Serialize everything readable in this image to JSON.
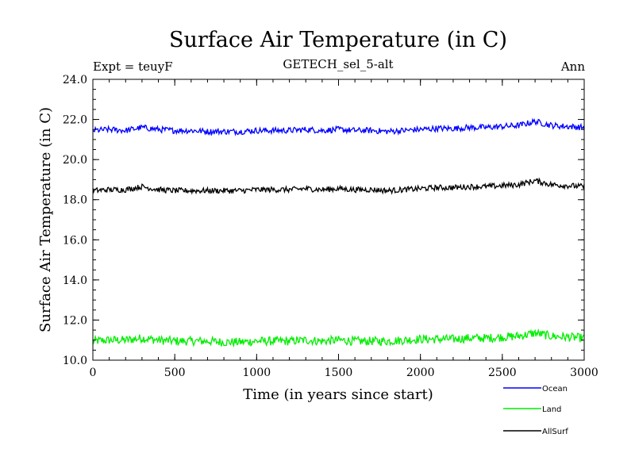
{
  "chart_data": {
    "type": "line",
    "title": "Surface Air Temperature (in C)",
    "subtitle": "GETECH_sel_5-alt",
    "left_label": "Expt = teuyF",
    "right_label": "Ann",
    "xlabel": "Time (in years since start)",
    "ylabel": "Surface Air Temperature (in C)",
    "xlim": [
      0,
      3000
    ],
    "ylim": [
      10.0,
      24.0
    ],
    "x_ticks": [
      "0",
      "500",
      "1000",
      "1500",
      "2000",
      "2500",
      "3000"
    ],
    "y_ticks": [
      "10.0",
      "12.0",
      "14.0",
      "16.0",
      "18.0",
      "20.0",
      "22.0",
      "24.0"
    ],
    "grid": false,
    "legend_position": "bottom-right",
    "x": [
      0,
      100,
      200,
      300,
      400,
      500,
      600,
      700,
      800,
      900,
      1000,
      1100,
      1200,
      1300,
      1400,
      1500,
      1600,
      1700,
      1800,
      1900,
      2000,
      2100,
      2200,
      2300,
      2400,
      2500,
      2600,
      2700,
      2800,
      2900,
      3000
    ],
    "series": [
      {
        "name": "Ocean",
        "color": "#0000ff",
        "noise": 0.15,
        "values": [
          21.45,
          21.5,
          21.45,
          21.6,
          21.5,
          21.45,
          21.45,
          21.4,
          21.4,
          21.4,
          21.45,
          21.45,
          21.45,
          21.5,
          21.45,
          21.5,
          21.45,
          21.45,
          21.4,
          21.45,
          21.5,
          21.55,
          21.55,
          21.6,
          21.6,
          21.65,
          21.7,
          21.9,
          21.7,
          21.65,
          21.6
        ]
      },
      {
        "name": "Land",
        "color": "#00ee00",
        "noise": 0.22,
        "values": [
          10.95,
          11.0,
          11.0,
          11.1,
          11.0,
          10.95,
          10.95,
          10.95,
          10.9,
          10.9,
          10.95,
          10.95,
          10.95,
          11.0,
          10.95,
          11.0,
          10.95,
          10.95,
          10.95,
          11.0,
          11.05,
          11.05,
          11.05,
          11.1,
          11.1,
          11.15,
          11.2,
          11.35,
          11.2,
          11.15,
          11.1
        ]
      },
      {
        "name": "AllSurf",
        "color": "#000000",
        "noise": 0.14,
        "values": [
          18.45,
          18.5,
          18.5,
          18.65,
          18.5,
          18.45,
          18.45,
          18.45,
          18.45,
          18.45,
          18.5,
          18.5,
          18.5,
          18.55,
          18.5,
          18.55,
          18.5,
          18.5,
          18.45,
          18.5,
          18.55,
          18.6,
          18.6,
          18.65,
          18.65,
          18.7,
          18.75,
          18.95,
          18.75,
          18.7,
          18.65
        ]
      }
    ]
  }
}
